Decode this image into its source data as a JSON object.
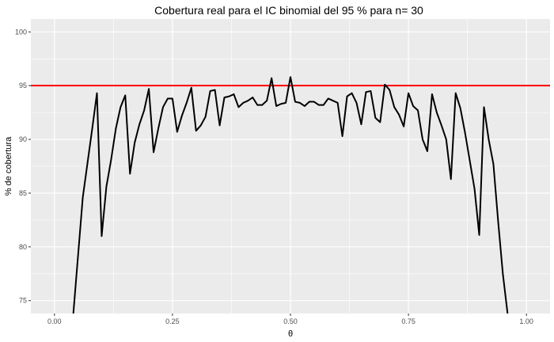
{
  "chart_data": {
    "type": "line",
    "title": "Cobertura real para el IC binomial del  95 % para n= 30",
    "xlabel": "θ",
    "ylabel": "% de cobertura",
    "xlim": [
      -0.05,
      1.05
    ],
    "ylim": [
      73.8,
      101.2
    ],
    "x_ticks": [
      0.0,
      0.25,
      0.5,
      0.75,
      1.0
    ],
    "x_tick_labels": [
      "0.00",
      "0.25",
      "0.50",
      "0.75",
      "1.00"
    ],
    "y_ticks": [
      75,
      80,
      85,
      90,
      95,
      100
    ],
    "y_tick_labels": [
      "75",
      "80",
      "85",
      "90",
      "95",
      "100"
    ],
    "grid": true,
    "background_color": "#ebebeb",
    "reference_line": {
      "y": 95,
      "color": "#ff0000"
    },
    "series": [
      {
        "color": "#000000",
        "x": [
          0.04,
          0.05,
          0.06,
          0.07,
          0.08,
          0.09,
          0.1,
          0.11,
          0.12,
          0.13,
          0.14,
          0.15,
          0.16,
          0.17,
          0.18,
          0.19,
          0.2,
          0.21,
          0.22,
          0.23,
          0.24,
          0.25,
          0.26,
          0.27,
          0.28,
          0.29,
          0.3,
          0.31,
          0.32,
          0.33,
          0.34,
          0.35,
          0.36,
          0.37,
          0.38,
          0.39,
          0.4,
          0.41,
          0.42,
          0.43,
          0.44,
          0.45,
          0.46,
          0.47,
          0.48,
          0.49,
          0.5,
          0.51,
          0.52,
          0.53,
          0.54,
          0.55,
          0.56,
          0.57,
          0.58,
          0.59,
          0.6,
          0.61,
          0.62,
          0.63,
          0.64,
          0.65,
          0.66,
          0.67,
          0.68,
          0.69,
          0.7,
          0.71,
          0.72,
          0.73,
          0.74,
          0.75,
          0.76,
          0.77,
          0.78,
          0.79,
          0.8,
          0.81,
          0.82,
          0.83,
          0.84,
          0.85,
          0.86,
          0.87,
          0.88,
          0.89,
          0.9,
          0.91,
          0.92,
          0.93,
          0.94,
          0.95,
          0.96
        ],
        "y": [
          73.8,
          79.2,
          84.6,
          87.8,
          91.0,
          94.3,
          81.0,
          85.6,
          88.1,
          91.0,
          93.0,
          94.1,
          86.8,
          89.7,
          91.4,
          92.7,
          94.7,
          88.8,
          91.0,
          93.0,
          93.8,
          93.8,
          90.7,
          92.2,
          93.4,
          94.8,
          90.8,
          91.3,
          92.1,
          94.5,
          94.6,
          91.3,
          93.9,
          94.0,
          94.2,
          93.0,
          93.4,
          93.6,
          93.9,
          93.2,
          93.2,
          93.6,
          95.7,
          93.1,
          93.3,
          93.4,
          95.8,
          93.5,
          93.4,
          93.1,
          93.5,
          93.5,
          93.2,
          93.2,
          93.8,
          93.6,
          93.4,
          90.3,
          94.0,
          94.3,
          93.4,
          91.4,
          94.4,
          94.5,
          92.0,
          91.6,
          95.1,
          94.6,
          93.0,
          92.3,
          91.2,
          94.3,
          93.1,
          92.7,
          90.0,
          88.9,
          94.2,
          92.5,
          91.3,
          90.0,
          86.3,
          94.3,
          92.9,
          90.6,
          88.0,
          85.4,
          81.1,
          93.0,
          90.0,
          87.7,
          82.4,
          77.5,
          73.8
        ]
      }
    ]
  }
}
